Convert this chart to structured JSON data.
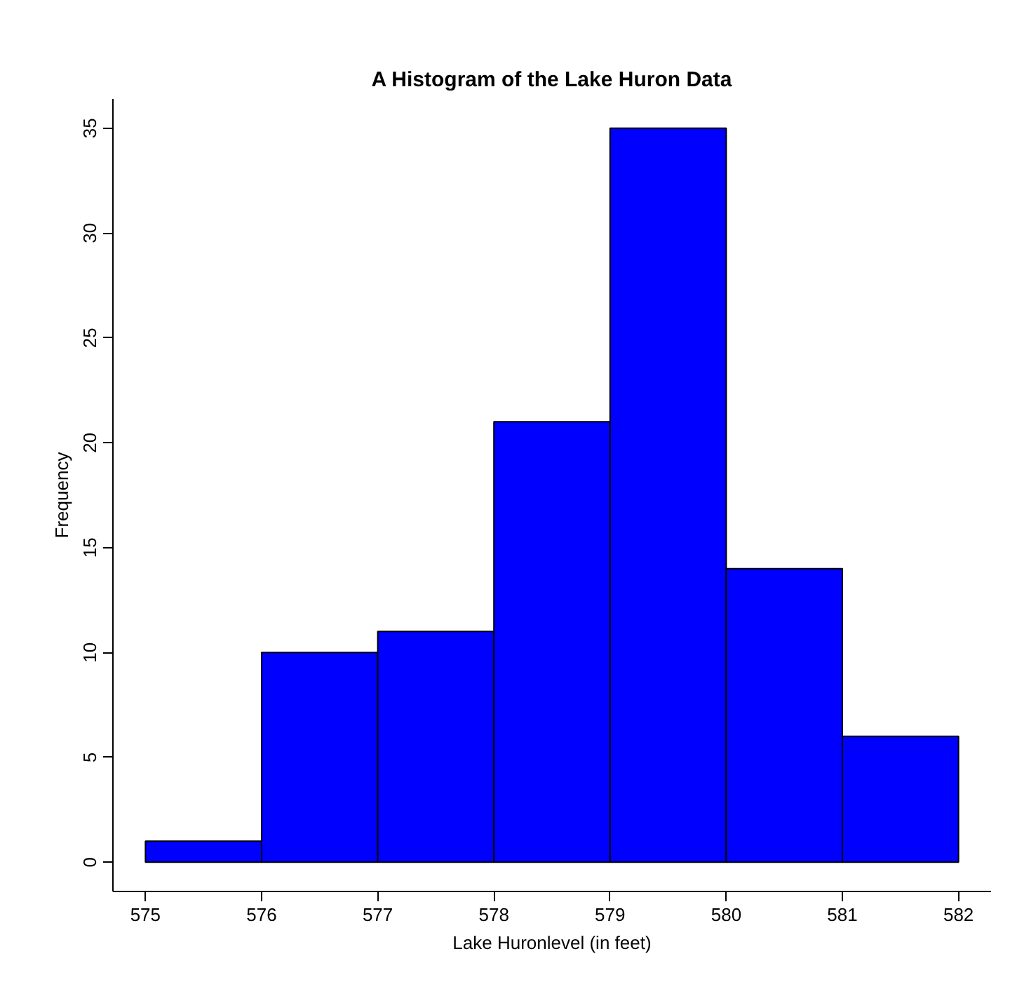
{
  "chart_data": {
    "type": "histogram",
    "title": "A Histogram of the Lake Huron Data",
    "xlabel": "Lake Huronlevel (in feet)",
    "ylabel": "Frequency",
    "bins": [
      575,
      576,
      577,
      578,
      579,
      580,
      581,
      582
    ],
    "values": [
      1,
      10,
      11,
      21,
      35,
      14,
      6
    ],
    "color": "#0000ff",
    "xlim": [
      574.72,
      582.28
    ],
    "xticks": [
      575,
      576,
      577,
      578,
      579,
      580,
      581,
      582
    ],
    "ylim": [
      -1.4,
      36.4
    ],
    "yticks": [
      0,
      5,
      10,
      15,
      20,
      25,
      30,
      35
    ],
    "grid": false
  }
}
